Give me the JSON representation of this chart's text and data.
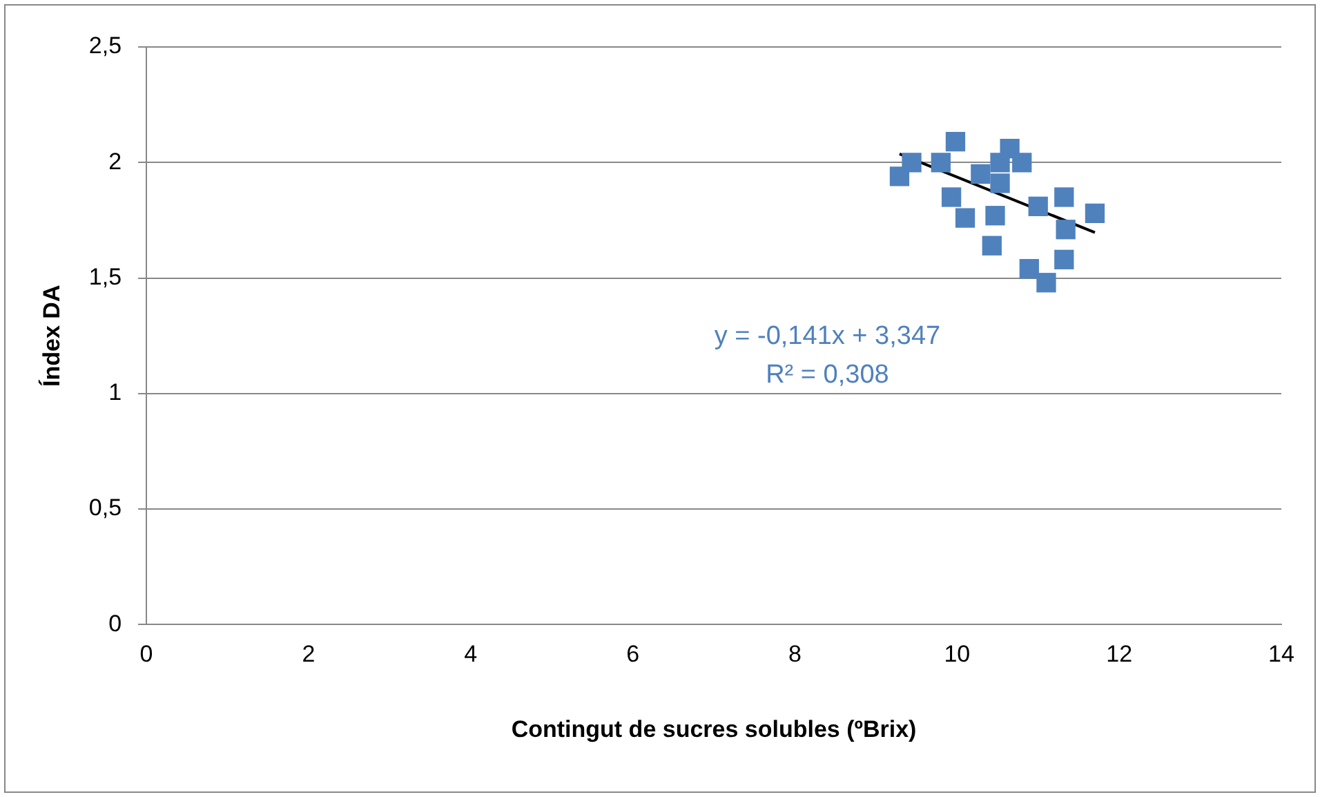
{
  "chart_data": {
    "type": "scatter",
    "xlabel": "Contingut de sucres solubles (ºBrix)",
    "ylabel": "Índex DA",
    "xlim": [
      0,
      14
    ],
    "xticks": [
      0,
      2,
      4,
      6,
      8,
      10,
      12,
      14
    ],
    "ylim": [
      0,
      2.5
    ],
    "yticks": [
      {
        "value": 0,
        "label": "0"
      },
      {
        "value": 0.5,
        "label": "0,5"
      },
      {
        "value": 1,
        "label": "1"
      },
      {
        "value": 1.5,
        "label": "1,5"
      },
      {
        "value": 2,
        "label": "2"
      },
      {
        "value": 2.5,
        "label": "2,5"
      }
    ],
    "grid": "y",
    "legend": false,
    "marker": "square",
    "series": [
      {
        "color": "#4f81bd",
        "x": [
          9.29,
          9.44,
          9.8,
          9.98,
          10.65,
          10.8,
          9.93,
          10.1,
          10.43,
          10.47,
          10.29,
          10.53,
          10.53,
          11.0,
          11.32,
          11.7,
          11.32,
          10.89,
          11.1,
          11.34
        ],
        "values": [
          1.94,
          2.0,
          2.0,
          2.09,
          2.06,
          2.0,
          1.85,
          1.76,
          1.64,
          1.77,
          1.95,
          1.91,
          2.0,
          1.81,
          1.85,
          1.78,
          1.58,
          1.54,
          1.48,
          1.71
        ]
      },
      {
        "type": "line",
        "color": "#000000",
        "x": [
          9.29,
          11.7
        ],
        "values": [
          2.037,
          1.697
        ],
        "marker": "none"
      }
    ],
    "annotations": [
      "y = -0,141x + 3,347",
      "R² = 0,308"
    ]
  }
}
